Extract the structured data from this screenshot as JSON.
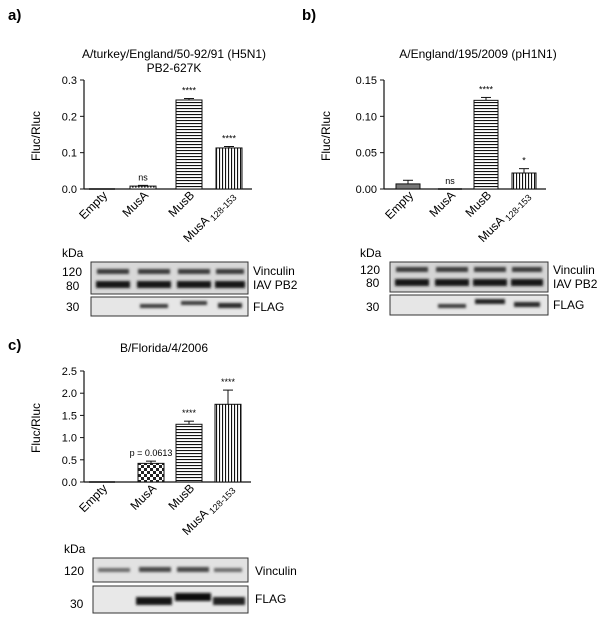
{
  "panels": [
    {
      "letter": "a)",
      "title_lines": [
        "A/turkey/England/50-92/91 (H5N1)",
        "PB2-627K"
      ],
      "ylabel": "Fluc/Rluc",
      "yticks": [
        "0.0",
        "0.1",
        "0.2",
        "0.3"
      ],
      "ylim": [
        0,
        0.3
      ],
      "categories": [
        "Empty",
        "MusA",
        "MusB",
        "MusA 128-153"
      ],
      "patterns": [
        "solid",
        "dots",
        "hlines",
        "vlines"
      ],
      "values": [
        0.0,
        0.008,
        0.245,
        0.113
      ],
      "errors": [
        0.0,
        0.002,
        0.004,
        0.004
      ],
      "significance": [
        "",
        "ns",
        "****",
        "****"
      ],
      "blot": {
        "unit": "kDa",
        "marker_top": [
          "120",
          "80"
        ],
        "marker_bottom": [
          "30"
        ],
        "labels_top": [
          "Vinculin",
          "IAV PB2"
        ],
        "labels_bottom": [
          "FLAG"
        ]
      }
    },
    {
      "letter": "b)",
      "title_lines": [
        "A/England/195/2009 (pH1N1)"
      ],
      "ylabel": "Fluc/Rluc",
      "yticks": [
        "0.00",
        "0.05",
        "0.10",
        "0.15"
      ],
      "ylim": [
        0,
        0.15
      ],
      "categories": [
        "Empty",
        "MusA",
        "MusB",
        "MusA 128-153"
      ],
      "patterns": [
        "solid",
        "dots",
        "hlines",
        "vlines"
      ],
      "values": [
        0.007,
        0.0,
        0.122,
        0.022
      ],
      "errors": [
        0.005,
        0.0,
        0.004,
        0.006
      ],
      "significance": [
        "",
        "ns",
        "****",
        "*"
      ],
      "blot": {
        "unit": "kDa",
        "marker_top": [
          "120",
          "80"
        ],
        "marker_bottom": [
          "30"
        ],
        "labels_top": [
          "Vinculin",
          "IAV PB2"
        ],
        "labels_bottom": [
          "FLAG"
        ]
      }
    },
    {
      "letter": "c)",
      "title_lines": [
        "B/Florida/4/2006"
      ],
      "ylabel": "Fluc/Rluc",
      "yticks": [
        "0.0",
        "0.5",
        "1.0",
        "1.5",
        "2.0",
        "2.5"
      ],
      "ylim": [
        0,
        2.5
      ],
      "categories": [
        "Empty",
        "MusA",
        "MusB",
        "MusA 128-153"
      ],
      "patterns": [
        "solid",
        "checker",
        "hlines",
        "vlines"
      ],
      "values": [
        0.0,
        0.42,
        1.3,
        1.75
      ],
      "errors": [
        0.0,
        0.05,
        0.07,
        0.32
      ],
      "significance": [
        "",
        "p = 0.0613",
        "****",
        "****"
      ],
      "blot": {
        "unit": "kDa",
        "marker_top": [
          "120"
        ],
        "marker_bottom": [
          "30"
        ],
        "labels_top": [
          "Vinculin"
        ],
        "labels_bottom": [
          "FLAG"
        ]
      }
    }
  ],
  "chart_data": [
    {
      "type": "bar",
      "title": "A/turkey/England/50-92/91 (H5N1) PB2-627K",
      "categories": [
        "Empty",
        "MusA",
        "MusB",
        "MusA 128-153"
      ],
      "values": [
        0.0,
        0.008,
        0.245,
        0.113
      ],
      "ylabel": "Fluc/Rluc",
      "ylim": [
        0,
        0.3
      ]
    },
    {
      "type": "bar",
      "title": "A/England/195/2009 (pH1N1)",
      "categories": [
        "Empty",
        "MusA",
        "MusB",
        "MusA 128-153"
      ],
      "values": [
        0.007,
        0.0,
        0.122,
        0.022
      ],
      "ylabel": "Fluc/Rluc",
      "ylim": [
        0,
        0.15
      ]
    },
    {
      "type": "bar",
      "title": "B/Florida/4/2006",
      "categories": [
        "Empty",
        "MusA",
        "MusB",
        "MusA 128-153"
      ],
      "values": [
        0.0,
        0.42,
        1.3,
        1.75
      ],
      "ylabel": "Fluc/Rluc",
      "ylim": [
        0,
        2.5
      ]
    }
  ]
}
